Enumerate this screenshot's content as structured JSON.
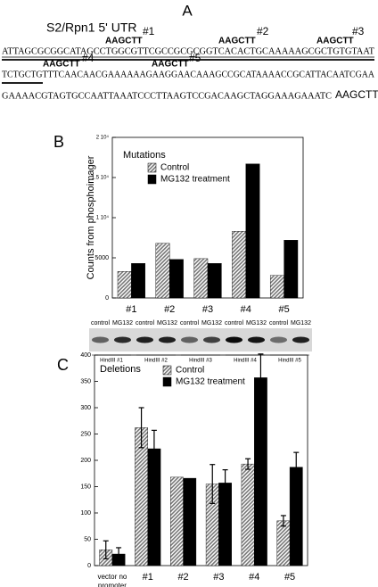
{
  "sequence": {
    "panel": "A",
    "title": "S2/Rpn1 5' UTR",
    "lines": [
      "ATTAGCGCGGCATAGCCTGGCGTTCGCCGCGCGGTCACACTGCAAAAAGCGCTGTGTAAT",
      "TCTGCTGTTTCAACAACGAAAAAAGAAGGAACAAAGCCGCATAAAACCGCATTACAATCGAA",
      "GAAAACGTAGTGCCAATTAAATCCCTTAAGTCCGACAAGCTAGGAAAGAAATC"
    ],
    "end_site": "AAGCTT",
    "sites": [
      {
        "site": "AAGCTT",
        "label": "#1"
      },
      {
        "site": "AAGCTT",
        "label": "#2"
      },
      {
        "site": "AAGCTT",
        "label": "#3"
      },
      {
        "site": "AAGCTT",
        "label": "#4"
      },
      {
        "site": "AAGCTT",
        "label": "#5"
      }
    ]
  },
  "gel": {
    "lanes": [
      "control",
      "MG132",
      "control",
      "MG132",
      "control",
      "MG132",
      "control",
      "MG132",
      "control",
      "MG132"
    ],
    "groups": [
      "HindIII #1",
      "HindIII #2",
      "HindIII #3",
      "HindIII #4",
      "HindIII #5"
    ]
  },
  "chart_data": [
    {
      "type": "bar",
      "panel": "B",
      "title": "Mutations",
      "ylabel": "Counts from phosphoimager",
      "categories": [
        "#1",
        "#2",
        "#3",
        "#4",
        "#5"
      ],
      "series": [
        {
          "name": "Control",
          "color": "#777777",
          "hatch": true,
          "values": [
            3300,
            6800,
            4900,
            8300,
            2800
          ]
        },
        {
          "name": "MG132 treatment",
          "color": "#000000",
          "hatch": false,
          "values": [
            4300,
            4800,
            4300,
            16700,
            7200
          ]
        }
      ],
      "ylim": [
        0,
        20000
      ],
      "yticks": [
        0,
        5000,
        {
          "value": 10000,
          "label": "1 10⁴"
        },
        {
          "value": 15000,
          "label": "1.5 10⁴"
        },
        {
          "value": 20000,
          "label": "2 10⁴"
        }
      ]
    },
    {
      "type": "bar",
      "panel": "C",
      "title": "Deletions",
      "categories": [
        "vector no promoter",
        "#1",
        "#2",
        "#3",
        "#4",
        "#5"
      ],
      "series": [
        {
          "name": "Control",
          "color": "#777777",
          "hatch": true,
          "values": [
            30,
            262,
            168,
            155,
            193,
            85
          ],
          "errors": [
            17,
            38,
            null,
            37,
            10,
            10
          ]
        },
        {
          "name": "MG132 treatment",
          "color": "#000000",
          "hatch": false,
          "values": [
            22,
            222,
            166,
            157,
            357,
            187
          ],
          "errors": [
            12,
            35,
            null,
            25,
            45,
            28
          ]
        }
      ],
      "ylim": [
        0,
        400
      ],
      "yticks": [
        0,
        50,
        100,
        150,
        200,
        250,
        300,
        350,
        400
      ]
    }
  ]
}
